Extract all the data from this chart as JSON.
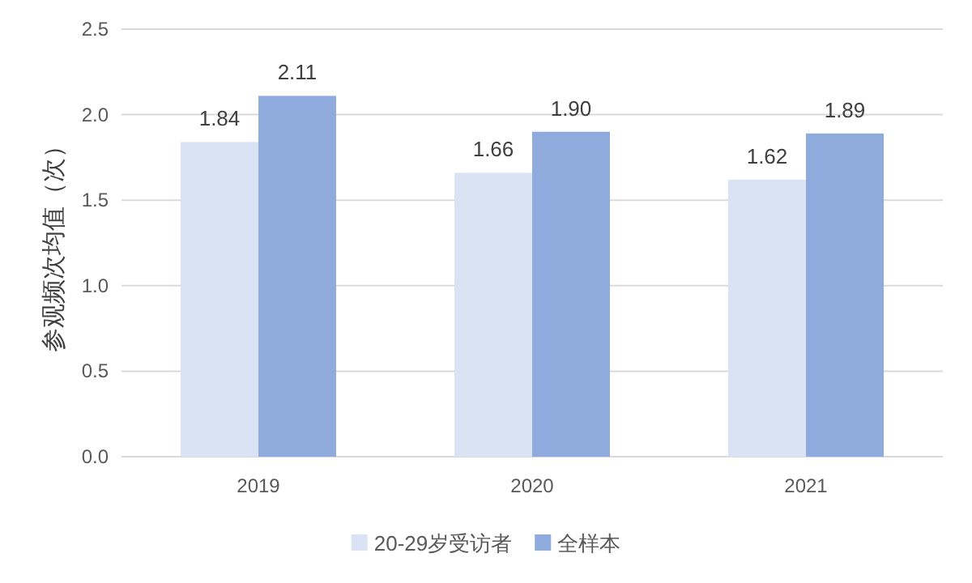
{
  "chart_data": {
    "type": "bar",
    "ylabel": "参观频次均值（次）",
    "categories": [
      "2019",
      "2020",
      "2021"
    ],
    "series": [
      {
        "name": "20-29岁受访者",
        "color": "#dae3f3",
        "values": [
          1.84,
          1.66,
          1.62
        ],
        "value_labels": [
          "1.84",
          "1.66",
          "1.62"
        ]
      },
      {
        "name": "全样本",
        "color": "#8faadc",
        "values": [
          2.11,
          1.9,
          1.89
        ],
        "value_labels": [
          "2.11",
          "1.90",
          "1.89"
        ]
      }
    ],
    "ylim": [
      0,
      2.5
    ],
    "yticks": [
      "0.0",
      "0.5",
      "1.0",
      "1.5",
      "2.0",
      "2.5"
    ],
    "grid": "y",
    "legend": "bottom"
  }
}
